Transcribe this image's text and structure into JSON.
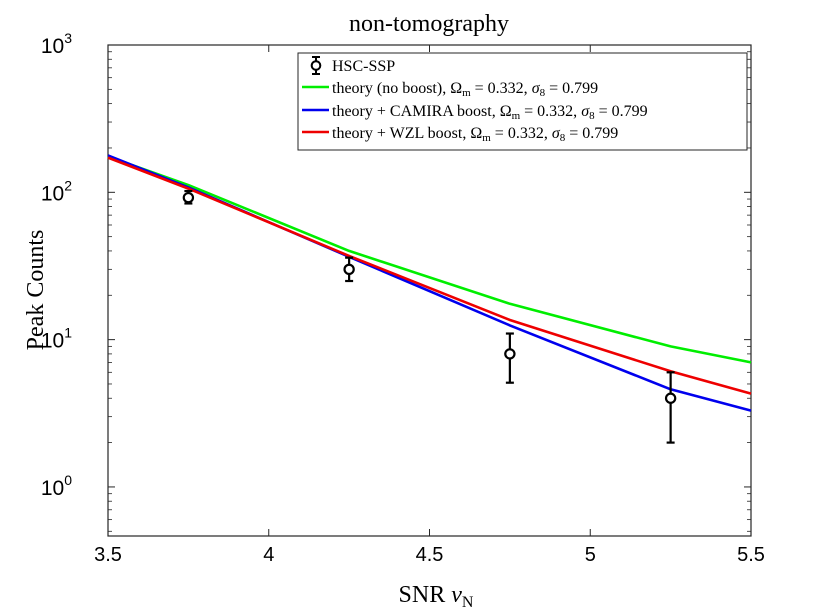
{
  "chart_data": {
    "type": "line",
    "title": "non-tomography",
    "xlabel_text": "SNR ",
    "xlabel_symbol": "ν",
    "xlabel_sub": "N",
    "ylabel": "Peak Counts",
    "xlim": [
      3.5,
      5.5
    ],
    "ylim_log10": [
      -0.333,
      3
    ],
    "yscale": "log",
    "x_ticks": [
      {
        "value": 3.5,
        "label": "3.5"
      },
      {
        "value": 4.0,
        "label": "4"
      },
      {
        "value": 4.5,
        "label": "4.5"
      },
      {
        "value": 5.0,
        "label": "5"
      },
      {
        "value": 5.5,
        "label": "5.5"
      }
    ],
    "y_ticks": [
      {
        "exp": 0,
        "base": "10",
        "sup": "0"
      },
      {
        "exp": 1,
        "base": "10",
        "sup": "1"
      },
      {
        "exp": 2,
        "base": "10",
        "sup": "2"
      },
      {
        "exp": 3,
        "base": "10",
        "sup": "3"
      }
    ],
    "legend_position": "top-right",
    "data_points": {
      "name": "HSC-SSP",
      "label": "HSC-SSP",
      "color": "#000000",
      "points": [
        {
          "x": 3.75,
          "y": 92,
          "ylo": 84,
          "yhi": 102
        },
        {
          "x": 4.25,
          "y": 30,
          "ylo": 25,
          "yhi": 36
        },
        {
          "x": 4.75,
          "y": 8,
          "ylo": 5.1,
          "yhi": 11
        },
        {
          "x": 5.25,
          "y": 4,
          "ylo": 2.0,
          "yhi": 6.0
        }
      ]
    },
    "series": [
      {
        "name": "theory (no boost)",
        "label_prefix": "theory (no boost), ",
        "color": "#00ee00",
        "x": [
          3.5,
          3.75,
          4.25,
          4.75,
          5.25,
          5.5
        ],
        "values": [
          175,
          112,
          40,
          17.5,
          9.0,
          7.0
        ]
      },
      {
        "name": "theory + CAMIRA boost",
        "label_prefix": "theory + CAMIRA boost, ",
        "color": "#0000ee",
        "x": [
          3.5,
          3.75,
          4.25,
          4.75,
          5.25,
          5.5
        ],
        "values": [
          178,
          108,
          36.5,
          12.5,
          4.6,
          3.3
        ]
      },
      {
        "name": "theory + WZL boost",
        "label_prefix": "theory + WZL boost, ",
        "color": "#ee0000",
        "x": [
          3.5,
          3.75,
          4.25,
          4.75,
          5.25,
          5.5
        ],
        "values": [
          172,
          106,
          37,
          13.6,
          6.1,
          4.3
        ]
      }
    ],
    "params": {
      "omega_symbol": "Ω",
      "omega_sub": "m",
      "omega_value": " = 0.332, ",
      "sigma_symbol": "σ",
      "sigma_sub": "8",
      "sigma_value": " = 0.799"
    }
  }
}
